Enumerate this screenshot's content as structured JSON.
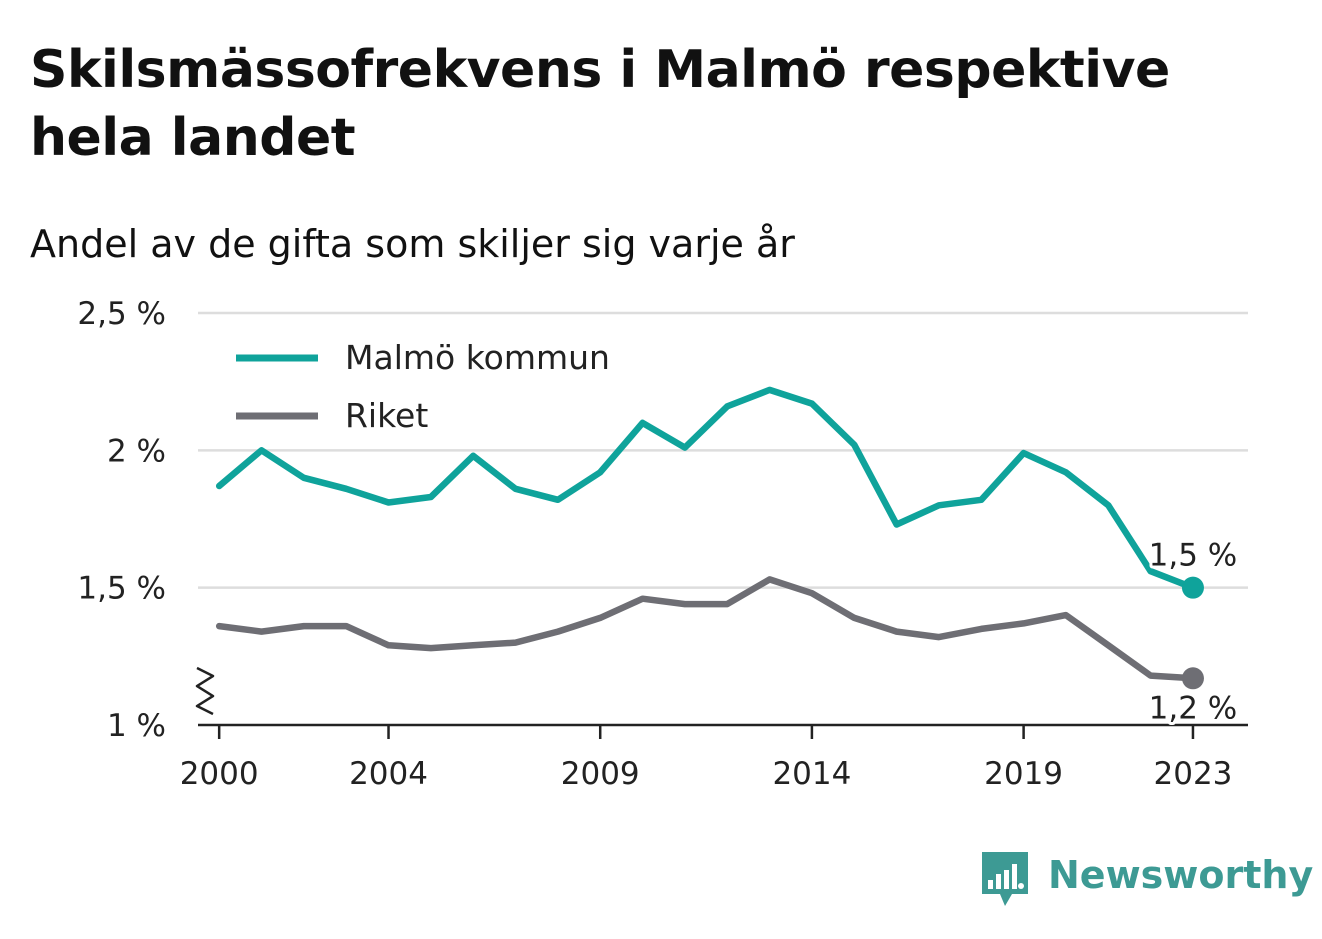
{
  "title": "Skilsmässofrekvens i Malmö respektive hela landet",
  "subtitle": "Andel av de gifta som skiljer sig varje år",
  "brand": {
    "name": "Newsworthy",
    "color": "#3d9a94",
    "icon": "newsworthy-chart-bubble-icon"
  },
  "colors": {
    "malmo": "#0fa39b",
    "riket": "#6e6e74",
    "grid": "#dddddd",
    "axis": "#222222",
    "text": "#222222"
  },
  "chart_data": {
    "type": "line",
    "ylim": [
      1,
      2.5
    ],
    "yticks": [
      1,
      1.5,
      2,
      2.5
    ],
    "ytick_labels": [
      "1 %",
      "1,5 %",
      "2 %",
      "2,5 %"
    ],
    "xlim": [
      1999.5,
      2024.3
    ],
    "xticks": [
      2000,
      2004,
      2009,
      2014,
      2019,
      2023
    ],
    "xtick_labels": [
      "2000",
      "2004",
      "2009",
      "2014",
      "2019",
      "2023"
    ],
    "axis_break": true,
    "grid": true,
    "legend_position": "top-left",
    "x": [
      2000,
      2001,
      2002,
      2003,
      2004,
      2005,
      2006,
      2007,
      2008,
      2009,
      2010,
      2011,
      2012,
      2013,
      2014,
      2015,
      2016,
      2017,
      2018,
      2019,
      2020,
      2021,
      2022,
      2023
    ],
    "series": [
      {
        "name": "Malmö kommun",
        "color_key": "malmo",
        "values": [
          1.87,
          2.0,
          1.9,
          1.86,
          1.81,
          1.83,
          1.98,
          1.86,
          1.82,
          1.92,
          2.1,
          2.01,
          2.16,
          2.22,
          2.17,
          2.02,
          1.73,
          1.8,
          1.82,
          1.99,
          1.92,
          1.8,
          1.56,
          1.5
        ],
        "end_label": "1,5 %"
      },
      {
        "name": "Riket",
        "color_key": "riket",
        "values": [
          1.36,
          1.34,
          1.36,
          1.36,
          1.29,
          1.28,
          1.29,
          1.3,
          1.34,
          1.39,
          1.46,
          1.44,
          1.44,
          1.53,
          1.48,
          1.39,
          1.34,
          1.32,
          1.35,
          1.37,
          1.4,
          1.29,
          1.18,
          1.17
        ],
        "end_label": "1,2 %"
      }
    ]
  }
}
